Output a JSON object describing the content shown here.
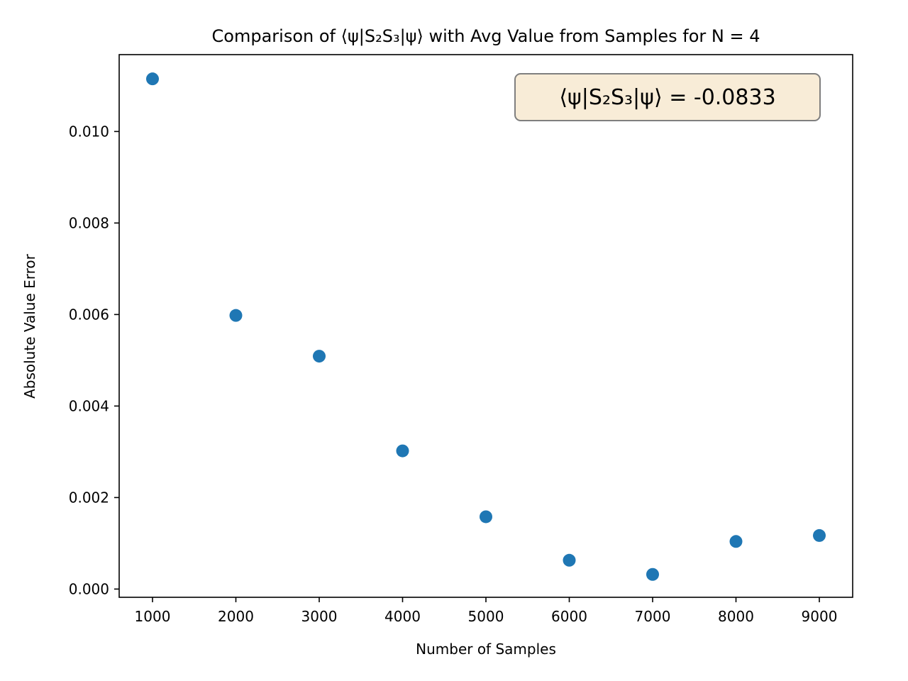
{
  "chart_data": {
    "type": "scatter",
    "title": "Comparison of ⟨ψ|S₂S₃|ψ⟩ with Avg Value from Samples for N = 4",
    "xlabel": "Number of Samples",
    "ylabel": "Absolute Value Error",
    "xlim": [
      600,
      9400
    ],
    "ylim": [
      -0.00018,
      0.01168
    ],
    "x_ticks": [
      1000,
      2000,
      3000,
      4000,
      5000,
      6000,
      7000,
      8000,
      9000
    ],
    "x_tick_labels": [
      "1000",
      "2000",
      "3000",
      "4000",
      "5000",
      "6000",
      "7000",
      "8000",
      "9000"
    ],
    "y_ticks": [
      0.0,
      0.002,
      0.004,
      0.006,
      0.008,
      0.01
    ],
    "y_tick_labels": [
      "0.000",
      "0.002",
      "0.004",
      "0.006",
      "0.008",
      "0.010"
    ],
    "grid": false,
    "series": [
      {
        "color": "#1f77b4",
        "x": [
          1000,
          2000,
          3000,
          4000,
          5000,
          6000,
          7000,
          8000,
          9000
        ],
        "y": [
          0.01115,
          0.00598,
          0.00509,
          0.00302,
          0.00158,
          0.00063,
          0.00032,
          0.00104,
          0.00117
        ]
      }
    ],
    "annotation": {
      "text": "⟨ψ|S₂S₃|ψ⟩ = -0.0833",
      "placement": "top-right",
      "background": "#f8ecd7",
      "border": "#7f7f7f"
    }
  }
}
